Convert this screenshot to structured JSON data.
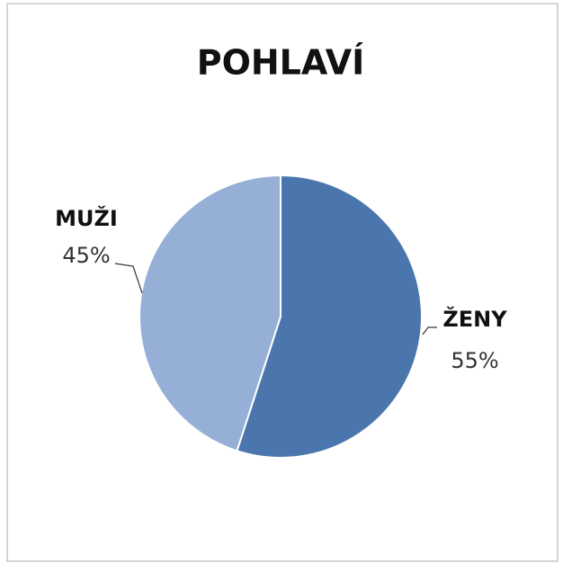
{
  "chart_data": {
    "type": "pie",
    "title": "POHLAVÍ",
    "categories": [
      "ŽENY",
      "MUŽI"
    ],
    "values": [
      55,
      45
    ],
    "value_labels": [
      "55%",
      "45%"
    ],
    "colors": [
      "#4a76ad",
      "#95afd6"
    ]
  }
}
